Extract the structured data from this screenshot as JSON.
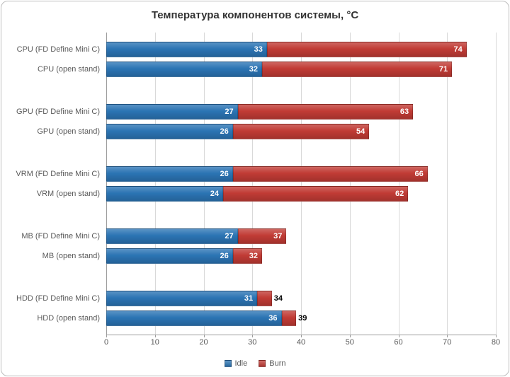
{
  "chart_data": {
    "type": "bar",
    "orientation": "horizontal",
    "stacked": true,
    "title": "Температура компонентов системы, °C",
    "categories": [
      "CPU (FD Define Mini C)",
      "CPU (open stand)",
      "GPU (FD Define Mini C)",
      "GPU (open stand)",
      "VRM (FD Define Mini C)",
      "VRM (open stand)",
      "MB (FD Define Mini C)",
      "MB (open stand)",
      "HDD (FD Define Mini C)",
      "HDD (open stand)"
    ],
    "series": [
      {
        "name": "Idle",
        "color": "#2B74B4",
        "values": [
          33,
          32,
          27,
          26,
          26,
          24,
          27,
          26,
          31,
          36
        ]
      },
      {
        "name": "Burn",
        "color": "#C13B35",
        "values": [
          74,
          71,
          63,
          54,
          66,
          62,
          37,
          32,
          34,
          39
        ]
      }
    ],
    "burn_values_are_totals": true,
    "xlim": [
      0,
      80
    ],
    "x_ticks": [
      0,
      10,
      20,
      30,
      40,
      50,
      60,
      70,
      80
    ],
    "grid": true,
    "legend_position": "bottom"
  }
}
